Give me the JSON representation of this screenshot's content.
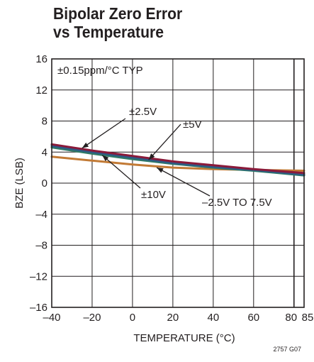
{
  "title_line1": "Bipolar Zero Error",
  "title_line2": "vs Temperature",
  "figure_code": "2757 G07",
  "chart_data": {
    "type": "line",
    "xlabel": "TEMPERATURE (°C)",
    "ylabel": "BZE (LSB)",
    "xlim": [
      -40,
      85
    ],
    "ylim": [
      -16,
      16
    ],
    "x_ticks": [
      -40,
      -20,
      0,
      20,
      40,
      60,
      80,
      85
    ],
    "x_tick_labels": [
      "–40",
      "–20",
      "0",
      "20",
      "40",
      "60",
      "80",
      "85"
    ],
    "y_ticks": [
      -16,
      -12,
      -8,
      -4,
      0,
      4,
      8,
      12,
      16
    ],
    "y_tick_labels": [
      "–16",
      "–12",
      "–8",
      "–4",
      "0",
      "4",
      "8",
      "12",
      "16"
    ],
    "grid": true,
    "annotation_typ": "±0.15ppm/°C TYP",
    "series": [
      {
        "name": "±2.5V",
        "color": "#8b1a3a",
        "x": [
          -40,
          -20,
          0,
          20,
          40,
          60,
          85
        ],
        "y": [
          5.0,
          4.2,
          3.5,
          2.8,
          2.3,
          1.8,
          1.3
        ]
      },
      {
        "name": "±5V",
        "color": "#2d5a86",
        "x": [
          -40,
          -20,
          0,
          20,
          40,
          60,
          85
        ],
        "y": [
          4.8,
          4.0,
          3.3,
          2.6,
          2.1,
          1.7,
          1.1
        ]
      },
      {
        "name": "±10V",
        "color": "#2f7a66",
        "x": [
          -40,
          -20,
          0,
          20,
          40,
          60,
          85
        ],
        "y": [
          4.6,
          3.8,
          3.1,
          2.5,
          2.0,
          1.6,
          1.0
        ]
      },
      {
        "name": "–2.5V TO 7.5V",
        "color": "#c27a35",
        "x": [
          -40,
          -20,
          0,
          20,
          40,
          60,
          85
        ],
        "y": [
          3.4,
          2.9,
          2.4,
          2.0,
          1.8,
          1.7,
          1.6
        ]
      }
    ],
    "callouts": [
      {
        "series": "±2.5V",
        "label": "±2.5V",
        "x": -25,
        "y": 4.5
      },
      {
        "series": "±5V",
        "label": "±5V",
        "x": 8,
        "y": 3.0
      },
      {
        "series": "±10V",
        "label": "±10V",
        "x": -15,
        "y": 3.6
      },
      {
        "series": "–2.5V TO 7.5V",
        "label": "–2.5V TO 7.5V",
        "x": 12,
        "y": 2.0
      }
    ]
  }
}
